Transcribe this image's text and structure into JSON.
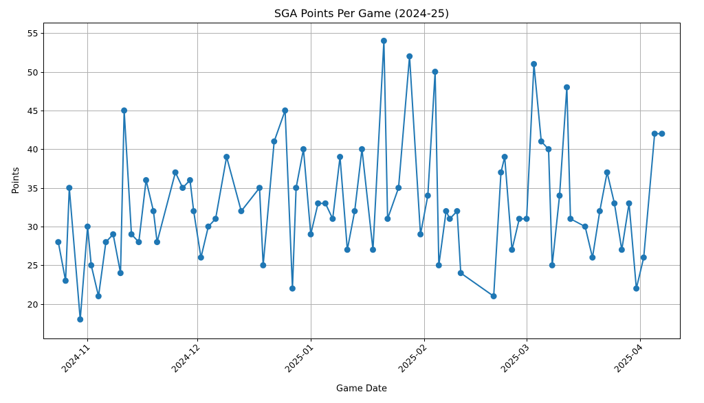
{
  "chart_data": {
    "type": "line",
    "title": "SGA Points Per Game (2024-25)",
    "xlabel": "Game Date",
    "ylabel": "Points",
    "ylim": [
      15.5,
      56.3
    ],
    "xlim": [
      "2024-10-20",
      "2025-04-12"
    ],
    "yticks": [
      20,
      25,
      30,
      35,
      40,
      45,
      50,
      55
    ],
    "xticks": [
      {
        "date": "2024-11-01",
        "label": "2024-11"
      },
      {
        "date": "2024-12-01",
        "label": "2024-12"
      },
      {
        "date": "2025-01-01",
        "label": "2025-01"
      },
      {
        "date": "2025-02-01",
        "label": "2025-02"
      },
      {
        "date": "2025-03-01",
        "label": "2025-03"
      },
      {
        "date": "2025-04-01",
        "label": "2025-04"
      }
    ],
    "grid": true,
    "marker": "circle",
    "color": "#1f77b4",
    "x": [
      "2024-10-24",
      "2024-10-26",
      "2024-10-27",
      "2024-10-30",
      "2024-11-01",
      "2024-11-02",
      "2024-11-04",
      "2024-11-06",
      "2024-11-08",
      "2024-11-10",
      "2024-11-11",
      "2024-11-13",
      "2024-11-15",
      "2024-11-17",
      "2024-11-19",
      "2024-11-20",
      "2024-11-25",
      "2024-11-27",
      "2024-11-29",
      "2024-11-30",
      "2024-12-02",
      "2024-12-04",
      "2024-12-06",
      "2024-12-09",
      "2024-12-13",
      "2024-12-18",
      "2024-12-19",
      "2024-12-22",
      "2024-12-25",
      "2024-12-27",
      "2024-12-28",
      "2024-12-30",
      "2025-01-01",
      "2025-01-03",
      "2025-01-05",
      "2025-01-07",
      "2025-01-09",
      "2025-01-11",
      "2025-01-13",
      "2025-01-15",
      "2025-01-18",
      "2025-01-21",
      "2025-01-22",
      "2025-01-25",
      "2025-01-28",
      "2025-01-31",
      "2025-02-02",
      "2025-02-04",
      "2025-02-05",
      "2025-02-07",
      "2025-02-08",
      "2025-02-10",
      "2025-02-11",
      "2025-02-20",
      "2025-02-22",
      "2025-02-23",
      "2025-02-25",
      "2025-02-27",
      "2025-03-01",
      "2025-03-03",
      "2025-03-05",
      "2025-03-07",
      "2025-03-08",
      "2025-03-10",
      "2025-03-12",
      "2025-03-13",
      "2025-03-17",
      "2025-03-19",
      "2025-03-21",
      "2025-03-23",
      "2025-03-25",
      "2025-03-27",
      "2025-03-29",
      "2025-03-31",
      "2025-04-02",
      "2025-04-05",
      "2025-04-07"
    ],
    "values": [
      28,
      23,
      35,
      18,
      30,
      25,
      21,
      28,
      29,
      24,
      45,
      29,
      28,
      36,
      32,
      28,
      37,
      35,
      36,
      32,
      26,
      30,
      31,
      39,
      32,
      35,
      25,
      41,
      45,
      22,
      35,
      40,
      29,
      33,
      33,
      31,
      39,
      27,
      32,
      40,
      27,
      54,
      31,
      35,
      52,
      29,
      34,
      50,
      25,
      32,
      31,
      32,
      24,
      21,
      37,
      39,
      27,
      31,
      31,
      51,
      41,
      40,
      25,
      34,
      48,
      31,
      30,
      26,
      32,
      37,
      33,
      27,
      33,
      22,
      26,
      42,
      42
    ]
  }
}
